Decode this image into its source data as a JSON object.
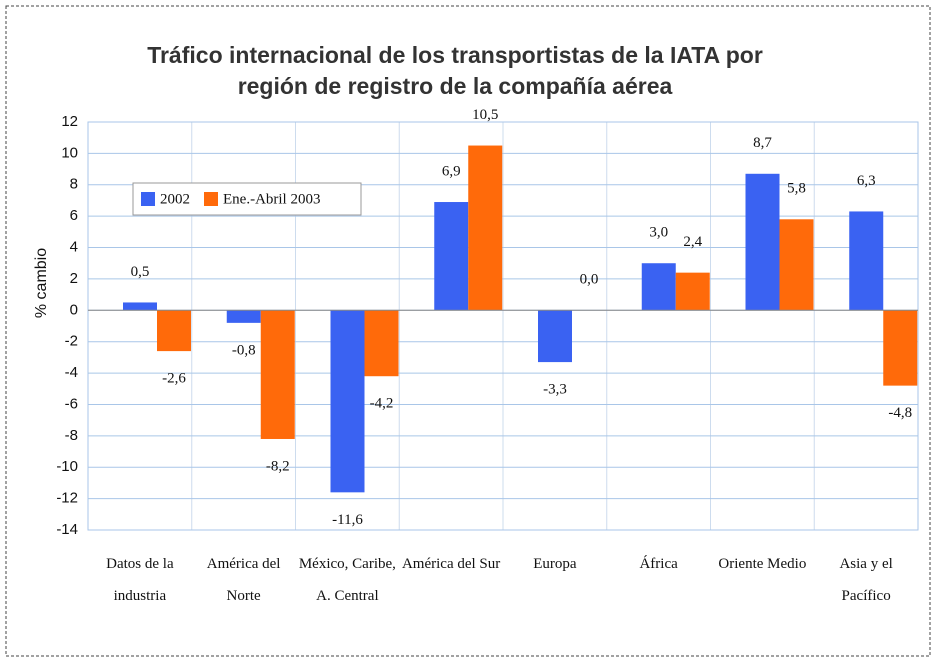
{
  "chart_data": {
    "type": "bar",
    "title": "Tráfico internacional de los transportistas de la IATA por región de registro de la compañía aérea",
    "y_label": "% cambio",
    "categories": [
      "Datos de la industria",
      "América del Norte",
      "México, Caribe, A. Central",
      "América del Sur",
      "Europa",
      "África",
      "Oriente Medio",
      "Asia y el Pacífico"
    ],
    "series": [
      {
        "name": "2002",
        "color": "#3a62f2",
        "values": [
          0.5,
          -0.8,
          -11.6,
          6.9,
          -3.3,
          3.0,
          8.7,
          6.3
        ],
        "value_labels": [
          "0,5",
          "-0,8",
          "-11,6",
          "6,9",
          "-3,3",
          "3,0",
          "8,7",
          "6,3"
        ]
      },
      {
        "name": "Ene.-Abril 2003",
        "color": "#ff6a0a",
        "values": [
          -2.6,
          -8.2,
          -4.2,
          10.5,
          0.0,
          2.4,
          5.8,
          -4.8
        ],
        "value_labels": [
          "-2,6",
          "-8,2",
          "-4,2",
          "10,5",
          "0,0",
          "2,4",
          "5,8",
          "-4,8"
        ]
      }
    ],
    "ylim": [
      -14,
      12
    ],
    "yticks": [
      12,
      10,
      8,
      6,
      4,
      2,
      0,
      -2,
      -4,
      -6,
      -8,
      -10,
      -12,
      -14
    ],
    "grid": true,
    "legend_position": "upper left"
  }
}
